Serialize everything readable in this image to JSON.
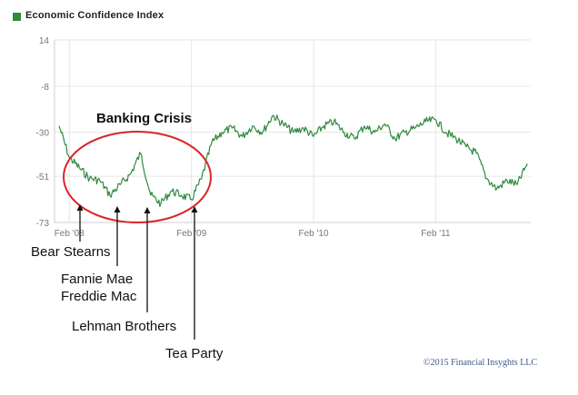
{
  "legend": {
    "label": "Economic Confidence Index",
    "color": "#2e8b3e"
  },
  "annotations": {
    "crisis_label": "Banking Crisis",
    "bear": "Bear Stearns",
    "fannie": "Fannie Mae",
    "freddie": "Freddie Mac",
    "lehman": "Lehman Brothers",
    "tea": "Tea Party"
  },
  "copyright": "©2015 Financial Insyghts LLC",
  "colors": {
    "line": "#2e8b3e",
    "ellipse": "#d9252a",
    "grid": "#e6e6e6",
    "axis_text": "#777777"
  },
  "chart_data": {
    "type": "line",
    "title": "",
    "xlabel": "",
    "ylabel": "",
    "ylim": [
      -73,
      14
    ],
    "y_ticks": [
      14,
      -8,
      -30,
      -51,
      -73
    ],
    "x_ticks": [
      "Feb '08",
      "Feb '09",
      "Feb '10",
      "Feb '11"
    ],
    "grid": true,
    "series": [
      {
        "name": "Economic Confidence Index",
        "x": [
          "2008-01",
          "2008-02",
          "2008-03",
          "2008-04",
          "2008-05",
          "2008-06",
          "2008-07",
          "2008-08",
          "2008-09",
          "2008-10",
          "2008-11",
          "2008-12",
          "2009-01",
          "2009-02",
          "2009-03",
          "2009-04",
          "2009-05",
          "2009-06",
          "2009-07",
          "2009-08",
          "2009-09",
          "2009-10",
          "2009-11",
          "2009-12",
          "2010-01",
          "2010-02",
          "2010-03",
          "2010-04",
          "2010-05",
          "2010-06",
          "2010-07",
          "2010-08",
          "2010-09",
          "2010-10",
          "2010-11",
          "2010-12",
          "2011-01",
          "2011-02",
          "2011-03",
          "2011-04",
          "2011-05",
          "2011-06",
          "2011-07",
          "2011-08",
          "2011-09",
          "2011-10",
          "2011-11"
        ],
        "values": [
          -27,
          -42,
          -47,
          -52,
          -53,
          -60,
          -55,
          -50,
          -40,
          -60,
          -64,
          -58,
          -60,
          -62,
          -52,
          -35,
          -30,
          -28,
          -32,
          -27,
          -30,
          -22,
          -26,
          -30,
          -28,
          -32,
          -27,
          -25,
          -30,
          -33,
          -27,
          -30,
          -26,
          -33,
          -30,
          -28,
          -25,
          -24,
          -30,
          -33,
          -37,
          -40,
          -52,
          -57,
          -53,
          -55,
          -45
        ]
      }
    ]
  }
}
